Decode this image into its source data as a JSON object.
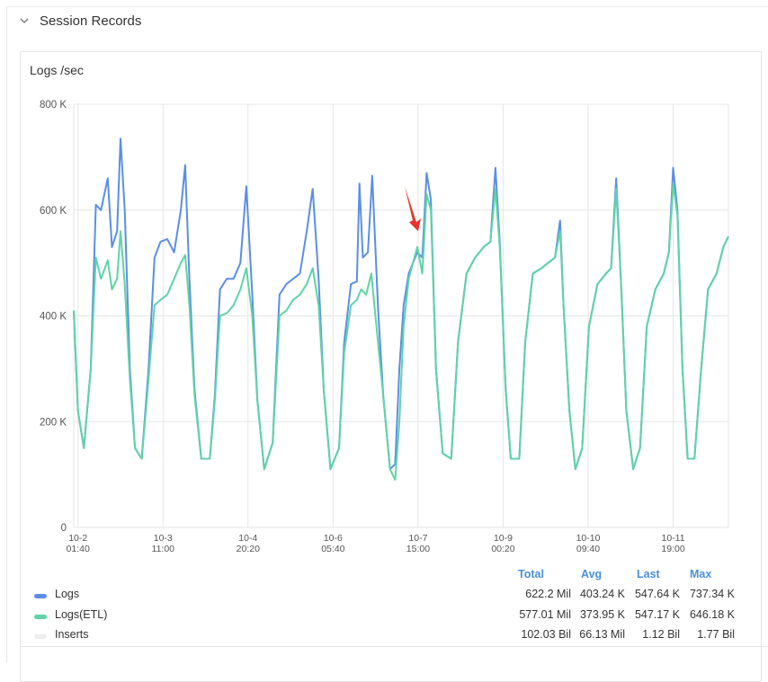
{
  "section": {
    "title": "Session Records"
  },
  "panel": {
    "title": "Logs /sec"
  },
  "colors": {
    "logs": "#5b8ee6",
    "logs_etl": "#5fd3a6",
    "inserts": "#ededed",
    "grid": "#e6e6e6",
    "annotation": "#e8322a",
    "header": "#4a90d9"
  },
  "legend": {
    "headers": {
      "total": "Total",
      "avg": "Avg",
      "last": "Last",
      "max": "Max"
    },
    "rows": [
      {
        "name": "Logs",
        "total": "622.2 Mil",
        "avg": "403.24 K",
        "last": "547.64 K",
        "max": "737.34 K",
        "color": "#5b8ee6"
      },
      {
        "name": "Logs(ETL)",
        "total": "577.01 Mil",
        "avg": "373.95 K",
        "last": "547.17 K",
        "max": "646.18 K",
        "color": "#5fd3a6"
      },
      {
        "name": "Inserts",
        "total": "102.03 Bil",
        "avg": "66.13 Mil",
        "last": "1.12 Bil",
        "max": "1.77 Bil",
        "color": "#ededed"
      }
    ]
  },
  "chart_data": {
    "type": "line",
    "title": "Logs /sec",
    "ylim": [
      0,
      800000
    ],
    "y_ticks": [
      {
        "v": 0,
        "label": "0"
      },
      {
        "v": 200000,
        "label": "200 K"
      },
      {
        "v": 400000,
        "label": "400 K"
      },
      {
        "v": 600000,
        "label": "600 K"
      },
      {
        "v": 800000,
        "label": "800 K"
      }
    ],
    "xlim": [
      0,
      7.7
    ],
    "x_ticks": [
      {
        "v": 0.05,
        "date": "10-2",
        "time": "01:40"
      },
      {
        "v": 1.05,
        "date": "10-3",
        "time": "11:00"
      },
      {
        "v": 2.05,
        "date": "10-4",
        "time": "20:20"
      },
      {
        "v": 3.05,
        "date": "10-6",
        "time": "05:40"
      },
      {
        "v": 4.05,
        "date": "10-7",
        "time": "15:00"
      },
      {
        "v": 5.05,
        "date": "10-9",
        "time": "00:20"
      },
      {
        "v": 6.05,
        "date": "10-10",
        "time": "09:40"
      },
      {
        "v": 7.05,
        "date": "10-11",
        "time": "19:00"
      }
    ],
    "grid": true,
    "series": [
      {
        "name": "Logs",
        "points": [
          [
            0.0,
            410000
          ],
          [
            0.05,
            220000
          ],
          [
            0.12,
            150000
          ],
          [
            0.2,
            300000
          ],
          [
            0.26,
            610000
          ],
          [
            0.32,
            600000
          ],
          [
            0.4,
            660000
          ],
          [
            0.45,
            530000
          ],
          [
            0.51,
            560000
          ],
          [
            0.55,
            735000
          ],
          [
            0.6,
            600000
          ],
          [
            0.66,
            300000
          ],
          [
            0.72,
            150000
          ],
          [
            0.8,
            130000
          ],
          [
            0.88,
            300000
          ],
          [
            0.95,
            510000
          ],
          [
            1.02,
            540000
          ],
          [
            1.1,
            545000
          ],
          [
            1.18,
            520000
          ],
          [
            1.26,
            600000
          ],
          [
            1.31,
            685000
          ],
          [
            1.36,
            470000
          ],
          [
            1.42,
            260000
          ],
          [
            1.5,
            130000
          ],
          [
            1.6,
            130000
          ],
          [
            1.66,
            250000
          ],
          [
            1.72,
            450000
          ],
          [
            1.8,
            470000
          ],
          [
            1.88,
            470000
          ],
          [
            1.96,
            500000
          ],
          [
            2.03,
            645000
          ],
          [
            2.1,
            440000
          ],
          [
            2.16,
            240000
          ],
          [
            2.24,
            110000
          ],
          [
            2.34,
            160000
          ],
          [
            2.42,
            440000
          ],
          [
            2.5,
            460000
          ],
          [
            2.58,
            470000
          ],
          [
            2.66,
            480000
          ],
          [
            2.74,
            560000
          ],
          [
            2.81,
            640000
          ],
          [
            2.88,
            470000
          ],
          [
            2.94,
            260000
          ],
          [
            3.02,
            110000
          ],
          [
            3.12,
            150000
          ],
          [
            3.18,
            350000
          ],
          [
            3.26,
            460000
          ],
          [
            3.33,
            465000
          ],
          [
            3.36,
            650000
          ],
          [
            3.4,
            510000
          ],
          [
            3.46,
            520000
          ],
          [
            3.51,
            665000
          ],
          [
            3.58,
            410000
          ],
          [
            3.64,
            250000
          ],
          [
            3.72,
            110000
          ],
          [
            3.78,
            120000
          ],
          [
            3.83,
            300000
          ],
          [
            3.88,
            420000
          ],
          [
            3.94,
            480000
          ],
          [
            3.99,
            500000
          ],
          [
            4.04,
            520000
          ],
          [
            4.1,
            510000
          ],
          [
            4.15,
            670000
          ],
          [
            4.2,
            620000
          ],
          [
            4.26,
            300000
          ],
          [
            4.34,
            140000
          ],
          [
            4.44,
            130000
          ],
          [
            4.52,
            350000
          ],
          [
            4.62,
            480000
          ],
          [
            4.72,
            510000
          ],
          [
            4.82,
            530000
          ],
          [
            4.9,
            540000
          ],
          [
            4.96,
            680000
          ],
          [
            5.01,
            540000
          ],
          [
            5.08,
            260000
          ],
          [
            5.14,
            130000
          ],
          [
            5.24,
            130000
          ],
          [
            5.31,
            350000
          ],
          [
            5.4,
            480000
          ],
          [
            5.5,
            490000
          ],
          [
            5.58,
            500000
          ],
          [
            5.66,
            510000
          ],
          [
            5.72,
            580000
          ],
          [
            5.76,
            420000
          ],
          [
            5.83,
            220000
          ],
          [
            5.9,
            110000
          ],
          [
            5.98,
            150000
          ],
          [
            6.06,
            380000
          ],
          [
            6.16,
            460000
          ],
          [
            6.26,
            480000
          ],
          [
            6.32,
            490000
          ],
          [
            6.38,
            660000
          ],
          [
            6.44,
            450000
          ],
          [
            6.5,
            220000
          ],
          [
            6.58,
            110000
          ],
          [
            6.66,
            150000
          ],
          [
            6.74,
            380000
          ],
          [
            6.84,
            450000
          ],
          [
            6.94,
            480000
          ],
          [
            7.0,
            520000
          ],
          [
            7.05,
            680000
          ],
          [
            7.1,
            600000
          ],
          [
            7.16,
            300000
          ],
          [
            7.22,
            130000
          ],
          [
            7.3,
            130000
          ],
          [
            7.38,
            300000
          ],
          [
            7.46,
            450000
          ],
          [
            7.56,
            480000
          ],
          [
            7.64,
            530000
          ],
          [
            7.7,
            550000
          ]
        ]
      },
      {
        "name": "Logs(ETL)",
        "points": [
          [
            0.0,
            410000
          ],
          [
            0.05,
            220000
          ],
          [
            0.12,
            150000
          ],
          [
            0.2,
            300000
          ],
          [
            0.26,
            510000
          ],
          [
            0.32,
            470000
          ],
          [
            0.4,
            505000
          ],
          [
            0.45,
            450000
          ],
          [
            0.51,
            470000
          ],
          [
            0.55,
            560000
          ],
          [
            0.6,
            460000
          ],
          [
            0.66,
            280000
          ],
          [
            0.72,
            150000
          ],
          [
            0.8,
            130000
          ],
          [
            0.88,
            280000
          ],
          [
            0.95,
            420000
          ],
          [
            1.02,
            430000
          ],
          [
            1.1,
            440000
          ],
          [
            1.18,
            470000
          ],
          [
            1.26,
            500000
          ],
          [
            1.31,
            515000
          ],
          [
            1.36,
            420000
          ],
          [
            1.42,
            250000
          ],
          [
            1.5,
            130000
          ],
          [
            1.6,
            130000
          ],
          [
            1.66,
            240000
          ],
          [
            1.72,
            400000
          ],
          [
            1.8,
            405000
          ],
          [
            1.88,
            420000
          ],
          [
            1.96,
            450000
          ],
          [
            2.03,
            490000
          ],
          [
            2.1,
            400000
          ],
          [
            2.16,
            240000
          ],
          [
            2.24,
            110000
          ],
          [
            2.34,
            160000
          ],
          [
            2.42,
            400000
          ],
          [
            2.5,
            410000
          ],
          [
            2.58,
            430000
          ],
          [
            2.66,
            440000
          ],
          [
            2.74,
            460000
          ],
          [
            2.81,
            490000
          ],
          [
            2.88,
            420000
          ],
          [
            2.94,
            260000
          ],
          [
            3.02,
            110000
          ],
          [
            3.12,
            150000
          ],
          [
            3.18,
            330000
          ],
          [
            3.26,
            420000
          ],
          [
            3.33,
            430000
          ],
          [
            3.38,
            450000
          ],
          [
            3.44,
            440000
          ],
          [
            3.5,
            480000
          ],
          [
            3.56,
            380000
          ],
          [
            3.64,
            250000
          ],
          [
            3.72,
            110000
          ],
          [
            3.78,
            90000
          ],
          [
            3.83,
            200000
          ],
          [
            3.88,
            380000
          ],
          [
            3.94,
            470000
          ],
          [
            3.99,
            500000
          ],
          [
            4.04,
            530000
          ],
          [
            4.1,
            480000
          ],
          [
            4.15,
            630000
          ],
          [
            4.2,
            600000
          ],
          [
            4.26,
            300000
          ],
          [
            4.34,
            140000
          ],
          [
            4.44,
            130000
          ],
          [
            4.52,
            350000
          ],
          [
            4.62,
            480000
          ],
          [
            4.72,
            510000
          ],
          [
            4.82,
            530000
          ],
          [
            4.9,
            540000
          ],
          [
            4.96,
            640000
          ],
          [
            5.01,
            530000
          ],
          [
            5.08,
            260000
          ],
          [
            5.14,
            130000
          ],
          [
            5.24,
            130000
          ],
          [
            5.31,
            350000
          ],
          [
            5.4,
            480000
          ],
          [
            5.5,
            490000
          ],
          [
            5.58,
            500000
          ],
          [
            5.66,
            510000
          ],
          [
            5.72,
            560000
          ],
          [
            5.76,
            420000
          ],
          [
            5.83,
            220000
          ],
          [
            5.9,
            110000
          ],
          [
            5.98,
            150000
          ],
          [
            6.06,
            380000
          ],
          [
            6.16,
            460000
          ],
          [
            6.26,
            480000
          ],
          [
            6.32,
            490000
          ],
          [
            6.38,
            640000
          ],
          [
            6.44,
            450000
          ],
          [
            6.5,
            220000
          ],
          [
            6.58,
            110000
          ],
          [
            6.66,
            150000
          ],
          [
            6.74,
            380000
          ],
          [
            6.84,
            450000
          ],
          [
            6.94,
            480000
          ],
          [
            7.0,
            520000
          ],
          [
            7.05,
            650000
          ],
          [
            7.1,
            590000
          ],
          [
            7.16,
            300000
          ],
          [
            7.22,
            130000
          ],
          [
            7.3,
            130000
          ],
          [
            7.38,
            300000
          ],
          [
            7.46,
            450000
          ],
          [
            7.56,
            480000
          ],
          [
            7.64,
            530000
          ],
          [
            7.7,
            550000
          ]
        ]
      }
    ],
    "annotation": {
      "type": "arrow",
      "x": 4.04,
      "y": 560000
    }
  }
}
